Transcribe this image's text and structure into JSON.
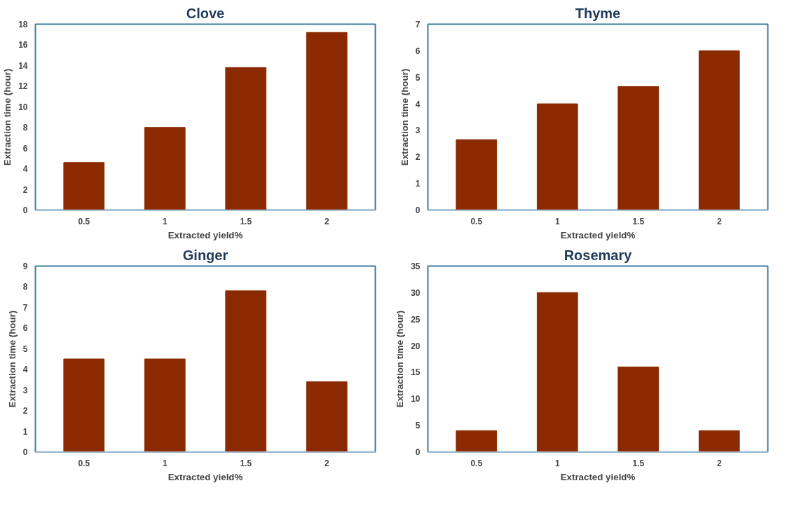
{
  "chart_data": [
    {
      "type": "bar",
      "title": "Clove",
      "xlabel": "Extracted yield%",
      "ylabel": "Extraction time (hour)",
      "categories": [
        "0.5",
        "1",
        "1.5",
        "2"
      ],
      "values": [
        4.6,
        8,
        13.8,
        17.2
      ],
      "color": "#8b2a00",
      "ylim": [
        0,
        18
      ],
      "yticks": [
        0,
        2,
        4,
        6,
        8,
        10,
        12,
        14,
        16,
        18
      ]
    },
    {
      "type": "bar",
      "title": "Thyme",
      "xlabel": "Extracted yield%",
      "ylabel": "Extraction time (hour)",
      "categories": [
        "0.5",
        "1",
        "1.5",
        "2"
      ],
      "values": [
        2.65,
        4,
        4.65,
        6
      ],
      "color": "#8b2a00",
      "ylim": [
        0,
        7
      ],
      "yticks": [
        0,
        1,
        2,
        3,
        4,
        5,
        6,
        7
      ]
    },
    {
      "type": "bar",
      "title": "Ginger",
      "xlabel": "Extracted yield%",
      "ylabel": "Extraction time (hour)",
      "categories": [
        "0.5",
        "1",
        "1.5",
        "2"
      ],
      "values": [
        4.5,
        4.5,
        7.8,
        3.4
      ],
      "color": "#8b2a00",
      "ylim": [
        0,
        9
      ],
      "yticks": [
        0,
        1,
        2,
        3,
        4,
        5,
        6,
        7,
        8,
        9
      ]
    },
    {
      "type": "bar",
      "title": "Rosemary",
      "xlabel": "Extracted yield%",
      "ylabel": "Extraction time (hour)",
      "categories": [
        "0.5",
        "1",
        "1.5",
        "2"
      ],
      "values": [
        4,
        30,
        16,
        4
      ],
      "color": "#8b2a00",
      "ylim": [
        0,
        35
      ],
      "yticks": [
        0,
        5,
        10,
        15,
        20,
        25,
        30,
        35
      ]
    }
  ]
}
